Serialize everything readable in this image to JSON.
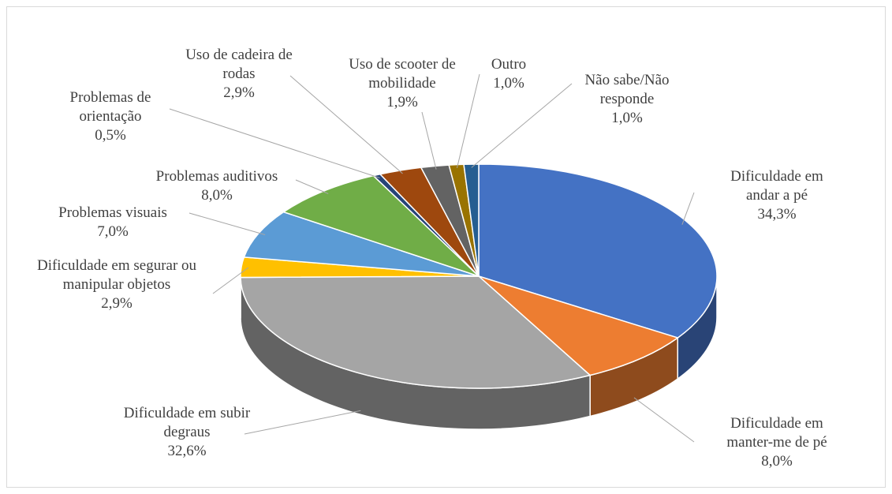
{
  "chart_data": {
    "type": "pie",
    "categories": [
      "Dificuldade em andar a pé",
      "Dificuldade em manter-me de pé",
      "Dificuldade em subir degraus",
      "Dificuldade em segurar ou manipular objetos",
      "Problemas visuais",
      "Problemas auditivos",
      "Problemas de orientação",
      "Uso de cadeira de rodas",
      "Uso de scooter de mobilidade",
      "Outro",
      "Não sabe/Não responde"
    ],
    "values": [
      34.3,
      8.0,
      32.6,
      2.9,
      7.0,
      8.0,
      0.5,
      2.9,
      1.9,
      1.0,
      1.0
    ],
    "value_labels": [
      "34,3%",
      "8,0%",
      "32,6%",
      "2,9%",
      "7,0%",
      "8,0%",
      "0,5%",
      "2,9%",
      "1,9%",
      "1,0%",
      "1,0%"
    ],
    "colors": [
      "#4472c4",
      "#ed7d31",
      "#a5a5a5",
      "#ffc000",
      "#5b9bd5",
      "#70ad47",
      "#264478",
      "#9e480e",
      "#636363",
      "#997300",
      "#255e91"
    ]
  }
}
